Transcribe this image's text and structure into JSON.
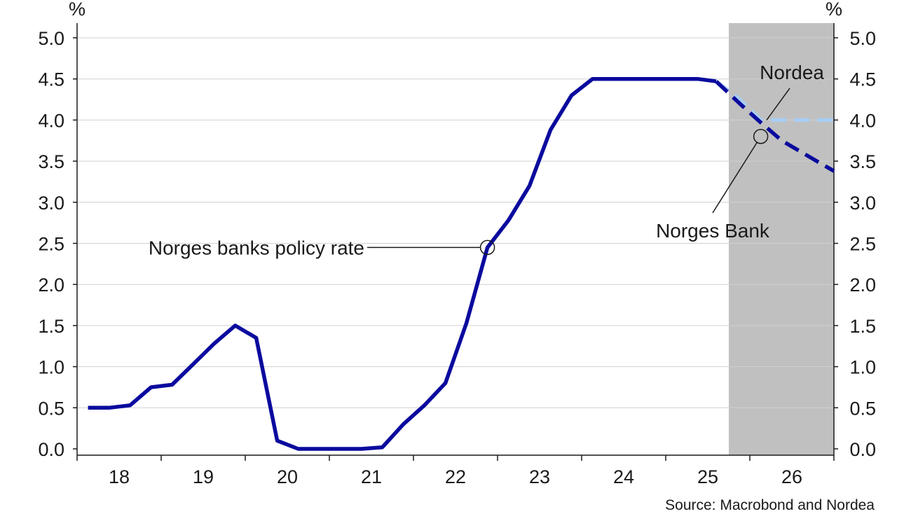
{
  "chart_data": {
    "type": "line",
    "y_unit_left": "%",
    "y_unit_right": "%",
    "ylim": [
      0,
      5
    ],
    "yticks": [
      "0.0",
      "0.5",
      "1.0",
      "1.5",
      "2.0",
      "2.5",
      "3.0",
      "3.5",
      "4.0",
      "4.5",
      "5.0"
    ],
    "xlim": [
      2017.5,
      2026.5
    ],
    "xticks": [
      "18",
      "19",
      "20",
      "21",
      "22",
      "23",
      "24",
      "25",
      "26"
    ],
    "forecast_shade": {
      "from": 2025.25,
      "to": 2026.5
    },
    "grid": true,
    "colors": {
      "policy_rate": "#0a0a9e",
      "norges_bank": "#0a0a9e",
      "nordea": "#a9cdf2",
      "shade": "#c0c0c0",
      "grid": "#d0d0d0"
    },
    "series": [
      {
        "key": "policy_rate",
        "style": "solid",
        "x": [
          2017.63,
          2017.88,
          2018.13,
          2018.38,
          2018.63,
          2018.88,
          2019.13,
          2019.38,
          2019.63,
          2019.88,
          2020.13,
          2020.38,
          2020.63,
          2020.88,
          2021.13,
          2021.38,
          2021.63,
          2021.88,
          2022.13,
          2022.38,
          2022.63,
          2022.88,
          2023.13,
          2023.38,
          2023.63,
          2023.88,
          2024.13,
          2024.38,
          2024.63,
          2024.88,
          2025.1
        ],
        "y": [
          0.5,
          0.5,
          0.53,
          0.75,
          0.78,
          1.03,
          1.28,
          1.5,
          1.35,
          0.1,
          0.0,
          0.0,
          0.0,
          0.0,
          0.02,
          0.3,
          0.53,
          0.8,
          1.53,
          2.45,
          2.78,
          3.2,
          3.88,
          4.3,
          4.5,
          4.5,
          4.5,
          4.5,
          4.5,
          4.5,
          4.47
        ]
      },
      {
        "key": "nordea",
        "style": "dashed",
        "x": [
          2025.1,
          2025.38,
          2025.63,
          2025.88,
          2026.13,
          2026.38,
          2026.5
        ],
        "y": [
          4.47,
          4.25,
          4.0,
          4.0,
          4.0,
          4.0,
          4.0
        ]
      },
      {
        "key": "norges_bank",
        "style": "dashed",
        "x": [
          2025.1,
          2025.38,
          2025.63,
          2025.88,
          2026.13,
          2026.38,
          2026.5
        ],
        "y": [
          4.47,
          4.2,
          3.97,
          3.75,
          3.6,
          3.45,
          3.38
        ]
      }
    ],
    "annotations": [
      {
        "text": "Norges banks policy rate",
        "target": {
          "x": 2022.38,
          "y": 2.45
        }
      },
      {
        "text": "Nordea",
        "target": {
          "x": 2025.7,
          "y": 4.0
        }
      },
      {
        "text": "Norges Bank",
        "target": {
          "x": 2025.63,
          "y": 3.8
        }
      }
    ],
    "source": "Source: Macrobond and Nordea"
  }
}
